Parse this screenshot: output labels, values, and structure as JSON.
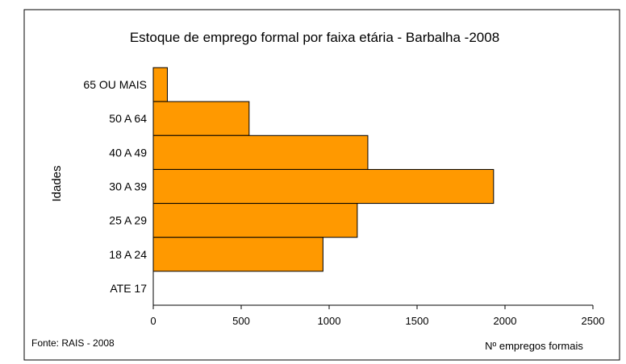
{
  "chart_data": {
    "type": "bar",
    "orientation": "horizontal",
    "title": "Estoque de emprego formal por faixa etária - Barbalha -2008",
    "xlabel": "Nº empregos formais",
    "ylabel": "Idades",
    "categories": [
      "65 OU MAIS",
      "50 A 64",
      "40 A 49",
      "30 A 39",
      "25 A 29",
      "18 A 24",
      "ATE 17"
    ],
    "values": [
      80,
      545,
      1220,
      1935,
      1160,
      965,
      0
    ],
    "xlim": [
      0,
      2500
    ],
    "xticks": [
      "0",
      "500",
      "1000",
      "1500",
      "2000",
      "2500"
    ],
    "grid": false,
    "legend": "none",
    "bar_color": "#FF9900",
    "bar_edge_color": "#000000",
    "source": "Fonte: RAIS - 2008"
  }
}
